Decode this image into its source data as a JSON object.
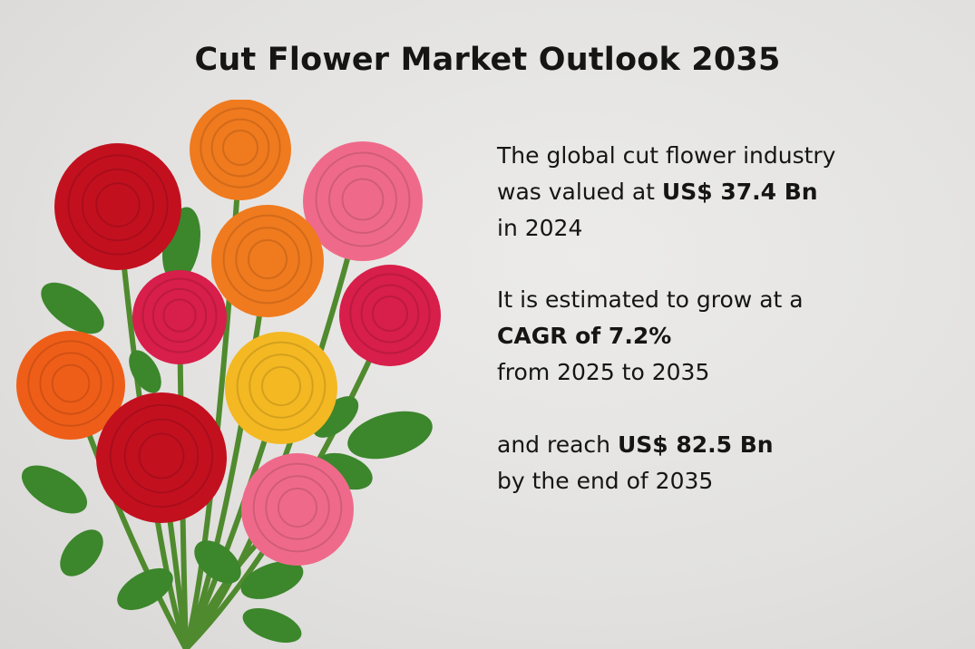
{
  "title": "Cut Flower Market Outlook 2035",
  "paragraphs": {
    "p1": {
      "line1": "The global cut flower industry",
      "line2_prefix": "was valued at ",
      "line2_value": "US$ 37.4 Bn",
      "line3": "in 2024"
    },
    "p2": {
      "line1": "It is estimated to grow at a",
      "line2_value": "CAGR of 7.2%",
      "line3": "from 2025 to 2035"
    },
    "p3": {
      "line1_prefix": "and reach ",
      "line1_value": "US$ 82.5 Bn",
      "line2": "by the end of 2035"
    }
  },
  "image": {
    "subject": "bouquet of ranunculus flowers",
    "colors": {
      "red": "#c3101f",
      "orange": "#f07a1e",
      "pink": "#ef6a8a",
      "magenta": "#d81e4a",
      "yellow": "#f4b822",
      "leaf": "#3c862c",
      "background": "#e4e3e1"
    }
  }
}
